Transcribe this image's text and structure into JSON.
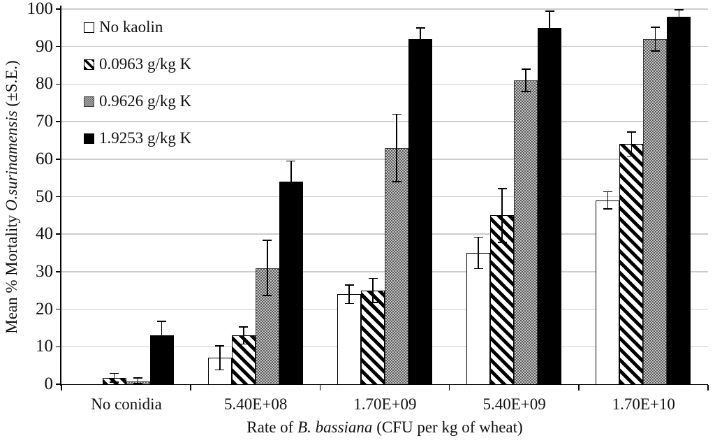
{
  "chart_data": {
    "type": "bar",
    "title": "",
    "categories": [
      "No conidia",
      "5.40E+08",
      "1.70E+09",
      "5.40E+09",
      "1.70E+10"
    ],
    "series": [
      {
        "name": "No kaolin",
        "pattern": "white",
        "values": [
          0,
          7,
          24,
          35,
          49
        ],
        "errors": [
          0,
          3.2,
          2.5,
          4.2,
          2.3
        ]
      },
      {
        "name": "0.0963 g/kg K",
        "pattern": "hatch",
        "values": [
          1.7,
          13,
          25,
          45,
          64
        ],
        "errors": [
          1.2,
          2.3,
          3.2,
          7.2,
          3.2
        ]
      },
      {
        "name": "0.9626 g/kg K",
        "pattern": "checker",
        "values": [
          0.8,
          31,
          63,
          81,
          92
        ],
        "errors": [
          0.9,
          7.4,
          9.0,
          3.0,
          3.2
        ]
      },
      {
        "name": "1.9253 g/kg K",
        "pattern": "black",
        "values": [
          13,
          54,
          92,
          95,
          98
        ],
        "errors": [
          3.8,
          5.5,
          3.0,
          4.4,
          1.8
        ]
      }
    ],
    "ylim": [
      0,
      100
    ],
    "yticks": [
      0,
      10,
      20,
      30,
      40,
      50,
      60,
      70,
      80,
      90,
      100
    ],
    "grid": true,
    "error_bars": true,
    "legend_position": "top-left",
    "xlabel": "Rate of B. bassiana (CFU per kg of wheat)",
    "ylabel": "Mean % Mortality O.surinamensis (±S.E.)",
    "xlabel_parts": [
      {
        "text": "Rate of ",
        "italic": false
      },
      {
        "text": "B. bassiana",
        "italic": true
      },
      {
        "text": " (CFU per kg of wheat)",
        "italic": false
      }
    ],
    "ylabel_parts": [
      {
        "text": "Mean % Mortality ",
        "italic": false
      },
      {
        "text": "O.surinamensis",
        "italic": true
      },
      {
        "text": " (±S.E.)",
        "italic": false
      }
    ]
  },
  "colors": {
    "bar_black": "#000000",
    "bar_white": "#ffffff",
    "checker_dark": "#5a5a5a",
    "checker_light": "#c6c6c6",
    "gridline": "#cccccc",
    "axis": "#000000",
    "text": "#111111"
  }
}
